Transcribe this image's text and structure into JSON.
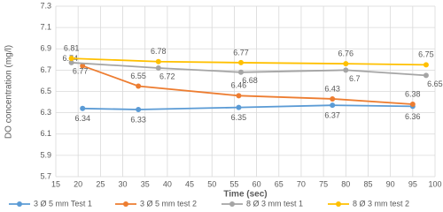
{
  "chart_data": {
    "type": "line",
    "xlabel": "Time (sec)",
    "ylabel": "DO concentration (mg/l)",
    "xlim": [
      15,
      100
    ],
    "xticks": [
      15,
      20,
      25,
      30,
      35,
      40,
      45,
      50,
      55,
      60,
      65,
      70,
      75,
      80,
      85,
      90,
      95,
      100
    ],
    "ylim": [
      5.7,
      7.3
    ],
    "yticks": [
      5.7,
      5.9,
      6.1,
      6.3,
      6.5,
      6.7,
      6.9,
      7.1,
      7.3
    ],
    "grid": true,
    "legend": "bottom",
    "series": [
      {
        "name": "3 Ø 5 mm Test 1",
        "color": "#5b9bd5",
        "x": [
          21,
          33.5,
          56,
          77,
          95
        ],
        "values": [
          6.34,
          6.33,
          6.35,
          6.37,
          6.36
        ]
      },
      {
        "name": "3 Ø 5 mm test 2",
        "color": "#ed7d31",
        "x": [
          21,
          33.5,
          56,
          77,
          95
        ],
        "values": [
          6.74,
          6.55,
          6.46,
          6.43,
          6.38
        ]
      },
      {
        "name": "8 Ø 3 mm test 1",
        "color": "#a5a5a5",
        "x": [
          18.5,
          38,
          56.5,
          80,
          98
        ],
        "values": [
          6.77,
          6.72,
          6.68,
          6.7,
          6.65
        ]
      },
      {
        "name": "8 Ø 3 mm test 2",
        "color": "#ffc000",
        "x": [
          18.5,
          38,
          56.5,
          80,
          98
        ],
        "values": [
          6.81,
          6.78,
          6.77,
          6.76,
          6.75
        ]
      }
    ]
  }
}
